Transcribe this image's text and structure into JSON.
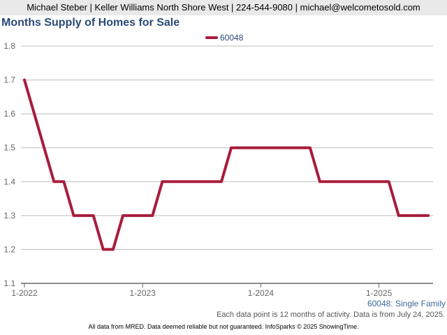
{
  "agent_bar": {
    "text": "Michael Steber | Keller Williams North Shore West | 224-544-9080 | michael@welcometosold.com"
  },
  "footnote": "Each data point is 12 months of activity. Data is from July 24, 2025.",
  "subtype": "60048: Single Family",
  "disclaimer": "All data from MRED. Data deemed reliable but not guaranteed. InfoSparks © 2025 ShowingTime.",
  "chart_data": {
    "type": "line",
    "title": "Months Supply of Homes for Sale",
    "xlabel": "",
    "ylabel": "",
    "ylim": [
      1.1,
      1.8
    ],
    "yticks": [
      1.1,
      1.2,
      1.3,
      1.4,
      1.5,
      1.6,
      1.7,
      1.8
    ],
    "ytick_labels": [
      "1.1",
      "1.2",
      "1.3",
      "1.4",
      "1.5",
      "1.6",
      "1.7",
      "1.8"
    ],
    "xticks": [
      "1-2022",
      "1-2023",
      "1-2024",
      "1-2025"
    ],
    "x": [
      "2022-01",
      "2022-02",
      "2022-03",
      "2022-04",
      "2022-05",
      "2022-06",
      "2022-07",
      "2022-08",
      "2022-09",
      "2022-10",
      "2022-11",
      "2022-12",
      "2023-01",
      "2023-02",
      "2023-03",
      "2023-04",
      "2023-05",
      "2023-06",
      "2023-07",
      "2023-08",
      "2023-09",
      "2023-10",
      "2023-11",
      "2023-12",
      "2024-01",
      "2024-02",
      "2024-03",
      "2024-04",
      "2024-05",
      "2024-06",
      "2024-07",
      "2024-08",
      "2024-09",
      "2024-10",
      "2024-11",
      "2024-12",
      "2025-01",
      "2025-02",
      "2025-03",
      "2025-04",
      "2025-05",
      "2025-06"
    ],
    "grid": true,
    "legend": "top-center",
    "series": [
      {
        "name": "60048",
        "color": "#a81d3c",
        "values": [
          1.7,
          1.6,
          1.5,
          1.4,
          1.4,
          1.3,
          1.3,
          1.3,
          1.2,
          1.2,
          1.3,
          1.3,
          1.3,
          1.3,
          1.4,
          1.4,
          1.4,
          1.4,
          1.4,
          1.4,
          1.4,
          1.5,
          1.5,
          1.5,
          1.5,
          1.5,
          1.5,
          1.5,
          1.5,
          1.5,
          1.4,
          1.4,
          1.4,
          1.4,
          1.4,
          1.4,
          1.4,
          1.4,
          1.3,
          1.3,
          1.3,
          1.3
        ]
      }
    ]
  }
}
